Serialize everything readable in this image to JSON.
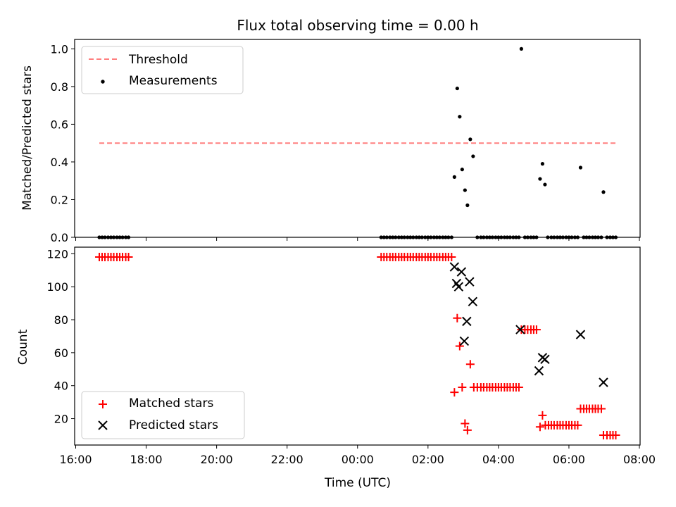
{
  "chart_data": [
    {
      "type": "scatter",
      "title": "Flux total observing time = 0.00 h",
      "xlabel": "",
      "ylabel": "Matched/Predicted stars",
      "x_unit": "hours since 16:00 UTC",
      "xlim": [
        -0.03,
        16.02
      ],
      "ylim": [
        0,
        1.05
      ],
      "yticks": [
        "0.0",
        "0.2",
        "0.4",
        "0.6",
        "0.8",
        "1.0"
      ],
      "threshold": {
        "name": "Threshold",
        "value": 0.5,
        "x_range": [
          0.67,
          15.33
        ],
        "color": "#ff7f7f"
      },
      "legend": {
        "position": "upper-left",
        "entries": [
          "Threshold",
          "Measurements"
        ]
      },
      "series": [
        {
          "name": "Measurements",
          "color": "#000000",
          "points": [
            [
              0.67,
              0
            ],
            [
              0.75,
              0
            ],
            [
              0.83,
              0
            ],
            [
              0.92,
              0
            ],
            [
              1.0,
              0
            ],
            [
              1.08,
              0
            ],
            [
              1.17,
              0
            ],
            [
              1.25,
              0
            ],
            [
              1.33,
              0
            ],
            [
              1.42,
              0
            ],
            [
              1.5,
              0
            ],
            [
              8.67,
              0
            ],
            [
              8.75,
              0
            ],
            [
              8.83,
              0
            ],
            [
              8.92,
              0
            ],
            [
              9.0,
              0
            ],
            [
              9.08,
              0
            ],
            [
              9.17,
              0
            ],
            [
              9.25,
              0
            ],
            [
              9.33,
              0
            ],
            [
              9.42,
              0
            ],
            [
              9.5,
              0
            ],
            [
              9.58,
              0
            ],
            [
              9.67,
              0
            ],
            [
              9.75,
              0
            ],
            [
              9.83,
              0
            ],
            [
              9.92,
              0
            ],
            [
              10.0,
              0
            ],
            [
              10.08,
              0
            ],
            [
              10.17,
              0
            ],
            [
              10.25,
              0
            ],
            [
              10.33,
              0
            ],
            [
              10.42,
              0
            ],
            [
              10.5,
              0
            ],
            [
              10.58,
              0
            ],
            [
              10.67,
              0
            ],
            [
              10.75,
              0.32
            ],
            [
              10.83,
              0.79
            ],
            [
              10.9,
              0.64
            ],
            [
              10.97,
              0.36
            ],
            [
              11.05,
              0.25
            ],
            [
              11.12,
              0.17
            ],
            [
              11.2,
              0.52
            ],
            [
              11.28,
              0.43
            ],
            [
              11.4,
              0
            ],
            [
              11.5,
              0
            ],
            [
              11.58,
              0
            ],
            [
              11.67,
              0
            ],
            [
              11.75,
              0
            ],
            [
              11.83,
              0
            ],
            [
              11.92,
              0
            ],
            [
              12.0,
              0
            ],
            [
              12.08,
              0
            ],
            [
              12.17,
              0
            ],
            [
              12.25,
              0
            ],
            [
              12.33,
              0
            ],
            [
              12.42,
              0
            ],
            [
              12.5,
              0
            ],
            [
              12.58,
              0
            ],
            [
              12.65,
              1.0
            ],
            [
              12.75,
              0
            ],
            [
              12.83,
              0
            ],
            [
              12.92,
              0
            ],
            [
              13.0,
              0
            ],
            [
              13.08,
              0
            ],
            [
              13.18,
              0.31
            ],
            [
              13.25,
              0.39
            ],
            [
              13.32,
              0.28
            ],
            [
              13.4,
              0
            ],
            [
              13.5,
              0
            ],
            [
              13.58,
              0
            ],
            [
              13.67,
              0
            ],
            [
              13.75,
              0
            ],
            [
              13.83,
              0
            ],
            [
              13.92,
              0
            ],
            [
              14.0,
              0
            ],
            [
              14.08,
              0
            ],
            [
              14.17,
              0
            ],
            [
              14.25,
              0
            ],
            [
              14.33,
              0.37
            ],
            [
              14.42,
              0
            ],
            [
              14.5,
              0
            ],
            [
              14.58,
              0
            ],
            [
              14.67,
              0
            ],
            [
              14.75,
              0
            ],
            [
              14.83,
              0
            ],
            [
              14.92,
              0
            ],
            [
              14.98,
              0.24
            ],
            [
              15.08,
              0
            ],
            [
              15.17,
              0
            ],
            [
              15.25,
              0
            ],
            [
              15.33,
              0
            ]
          ]
        }
      ]
    },
    {
      "type": "scatter",
      "title": "",
      "xlabel": "Time (UTC)",
      "ylabel": "Count",
      "x_unit": "hours since 16:00 UTC",
      "xlim": [
        -0.03,
        16.02
      ],
      "ylim": [
        4,
        124
      ],
      "yticks": [
        "20",
        "40",
        "60",
        "80",
        "100",
        "120"
      ],
      "xticks": [
        "16:00",
        "18:00",
        "20:00",
        "22:00",
        "00:00",
        "02:00",
        "04:00",
        "06:00",
        "08:00"
      ],
      "legend": {
        "position": "lower-left",
        "entries": [
          "Matched stars",
          "Predicted stars"
        ]
      },
      "series": [
        {
          "name": "Matched stars",
          "marker": "plus",
          "color": "#ff0000",
          "points": [
            [
              0.67,
              118
            ],
            [
              0.75,
              118
            ],
            [
              0.83,
              118
            ],
            [
              0.92,
              118
            ],
            [
              1.0,
              118
            ],
            [
              1.08,
              118
            ],
            [
              1.17,
              118
            ],
            [
              1.25,
              118
            ],
            [
              1.33,
              118
            ],
            [
              1.42,
              118
            ],
            [
              1.5,
              118
            ],
            [
              8.67,
              118
            ],
            [
              8.75,
              118
            ],
            [
              8.83,
              118
            ],
            [
              8.92,
              118
            ],
            [
              9.0,
              118
            ],
            [
              9.08,
              118
            ],
            [
              9.17,
              118
            ],
            [
              9.25,
              118
            ],
            [
              9.33,
              118
            ],
            [
              9.42,
              118
            ],
            [
              9.5,
              118
            ],
            [
              9.58,
              118
            ],
            [
              9.67,
              118
            ],
            [
              9.75,
              118
            ],
            [
              9.83,
              118
            ],
            [
              9.92,
              118
            ],
            [
              10.0,
              118
            ],
            [
              10.08,
              118
            ],
            [
              10.17,
              118
            ],
            [
              10.25,
              118
            ],
            [
              10.33,
              118
            ],
            [
              10.42,
              118
            ],
            [
              10.5,
              118
            ],
            [
              10.58,
              118
            ],
            [
              10.67,
              118
            ],
            [
              10.75,
              36
            ],
            [
              10.83,
              81
            ],
            [
              10.9,
              64
            ],
            [
              10.97,
              39
            ],
            [
              11.05,
              17
            ],
            [
              11.12,
              13
            ],
            [
              11.2,
              53
            ],
            [
              11.3,
              39
            ],
            [
              11.4,
              39
            ],
            [
              11.5,
              39
            ],
            [
              11.58,
              39
            ],
            [
              11.67,
              39
            ],
            [
              11.75,
              39
            ],
            [
              11.83,
              39
            ],
            [
              11.92,
              39
            ],
            [
              12.0,
              39
            ],
            [
              12.08,
              39
            ],
            [
              12.17,
              39
            ],
            [
              12.25,
              39
            ],
            [
              12.33,
              39
            ],
            [
              12.42,
              39
            ],
            [
              12.5,
              39
            ],
            [
              12.58,
              39
            ],
            [
              12.65,
              74
            ],
            [
              12.75,
              74
            ],
            [
              12.83,
              74
            ],
            [
              12.92,
              74
            ],
            [
              13.0,
              74
            ],
            [
              13.08,
              74
            ],
            [
              13.18,
              15
            ],
            [
              13.25,
              22
            ],
            [
              13.33,
              16
            ],
            [
              13.42,
              16
            ],
            [
              13.5,
              16
            ],
            [
              13.58,
              16
            ],
            [
              13.67,
              16
            ],
            [
              13.75,
              16
            ],
            [
              13.83,
              16
            ],
            [
              13.92,
              16
            ],
            [
              14.0,
              16
            ],
            [
              14.08,
              16
            ],
            [
              14.17,
              16
            ],
            [
              14.25,
              16
            ],
            [
              14.33,
              26
            ],
            [
              14.42,
              26
            ],
            [
              14.5,
              26
            ],
            [
              14.58,
              26
            ],
            [
              14.67,
              26
            ],
            [
              14.75,
              26
            ],
            [
              14.83,
              26
            ],
            [
              14.92,
              26
            ],
            [
              14.98,
              10
            ],
            [
              15.08,
              10
            ],
            [
              15.17,
              10
            ],
            [
              15.25,
              10
            ],
            [
              15.33,
              10
            ]
          ]
        },
        {
          "name": "Predicted stars",
          "marker": "x",
          "color": "#000000",
          "points": [
            [
              10.75,
              112
            ],
            [
              10.81,
              102
            ],
            [
              10.87,
              100
            ],
            [
              10.95,
              109
            ],
            [
              11.03,
              67
            ],
            [
              11.1,
              79
            ],
            [
              11.18,
              103
            ],
            [
              11.27,
              91
            ],
            [
              12.62,
              74
            ],
            [
              13.15,
              49
            ],
            [
              13.25,
              57
            ],
            [
              13.32,
              56
            ],
            [
              14.33,
              71
            ],
            [
              14.98,
              42
            ]
          ]
        }
      ]
    }
  ]
}
